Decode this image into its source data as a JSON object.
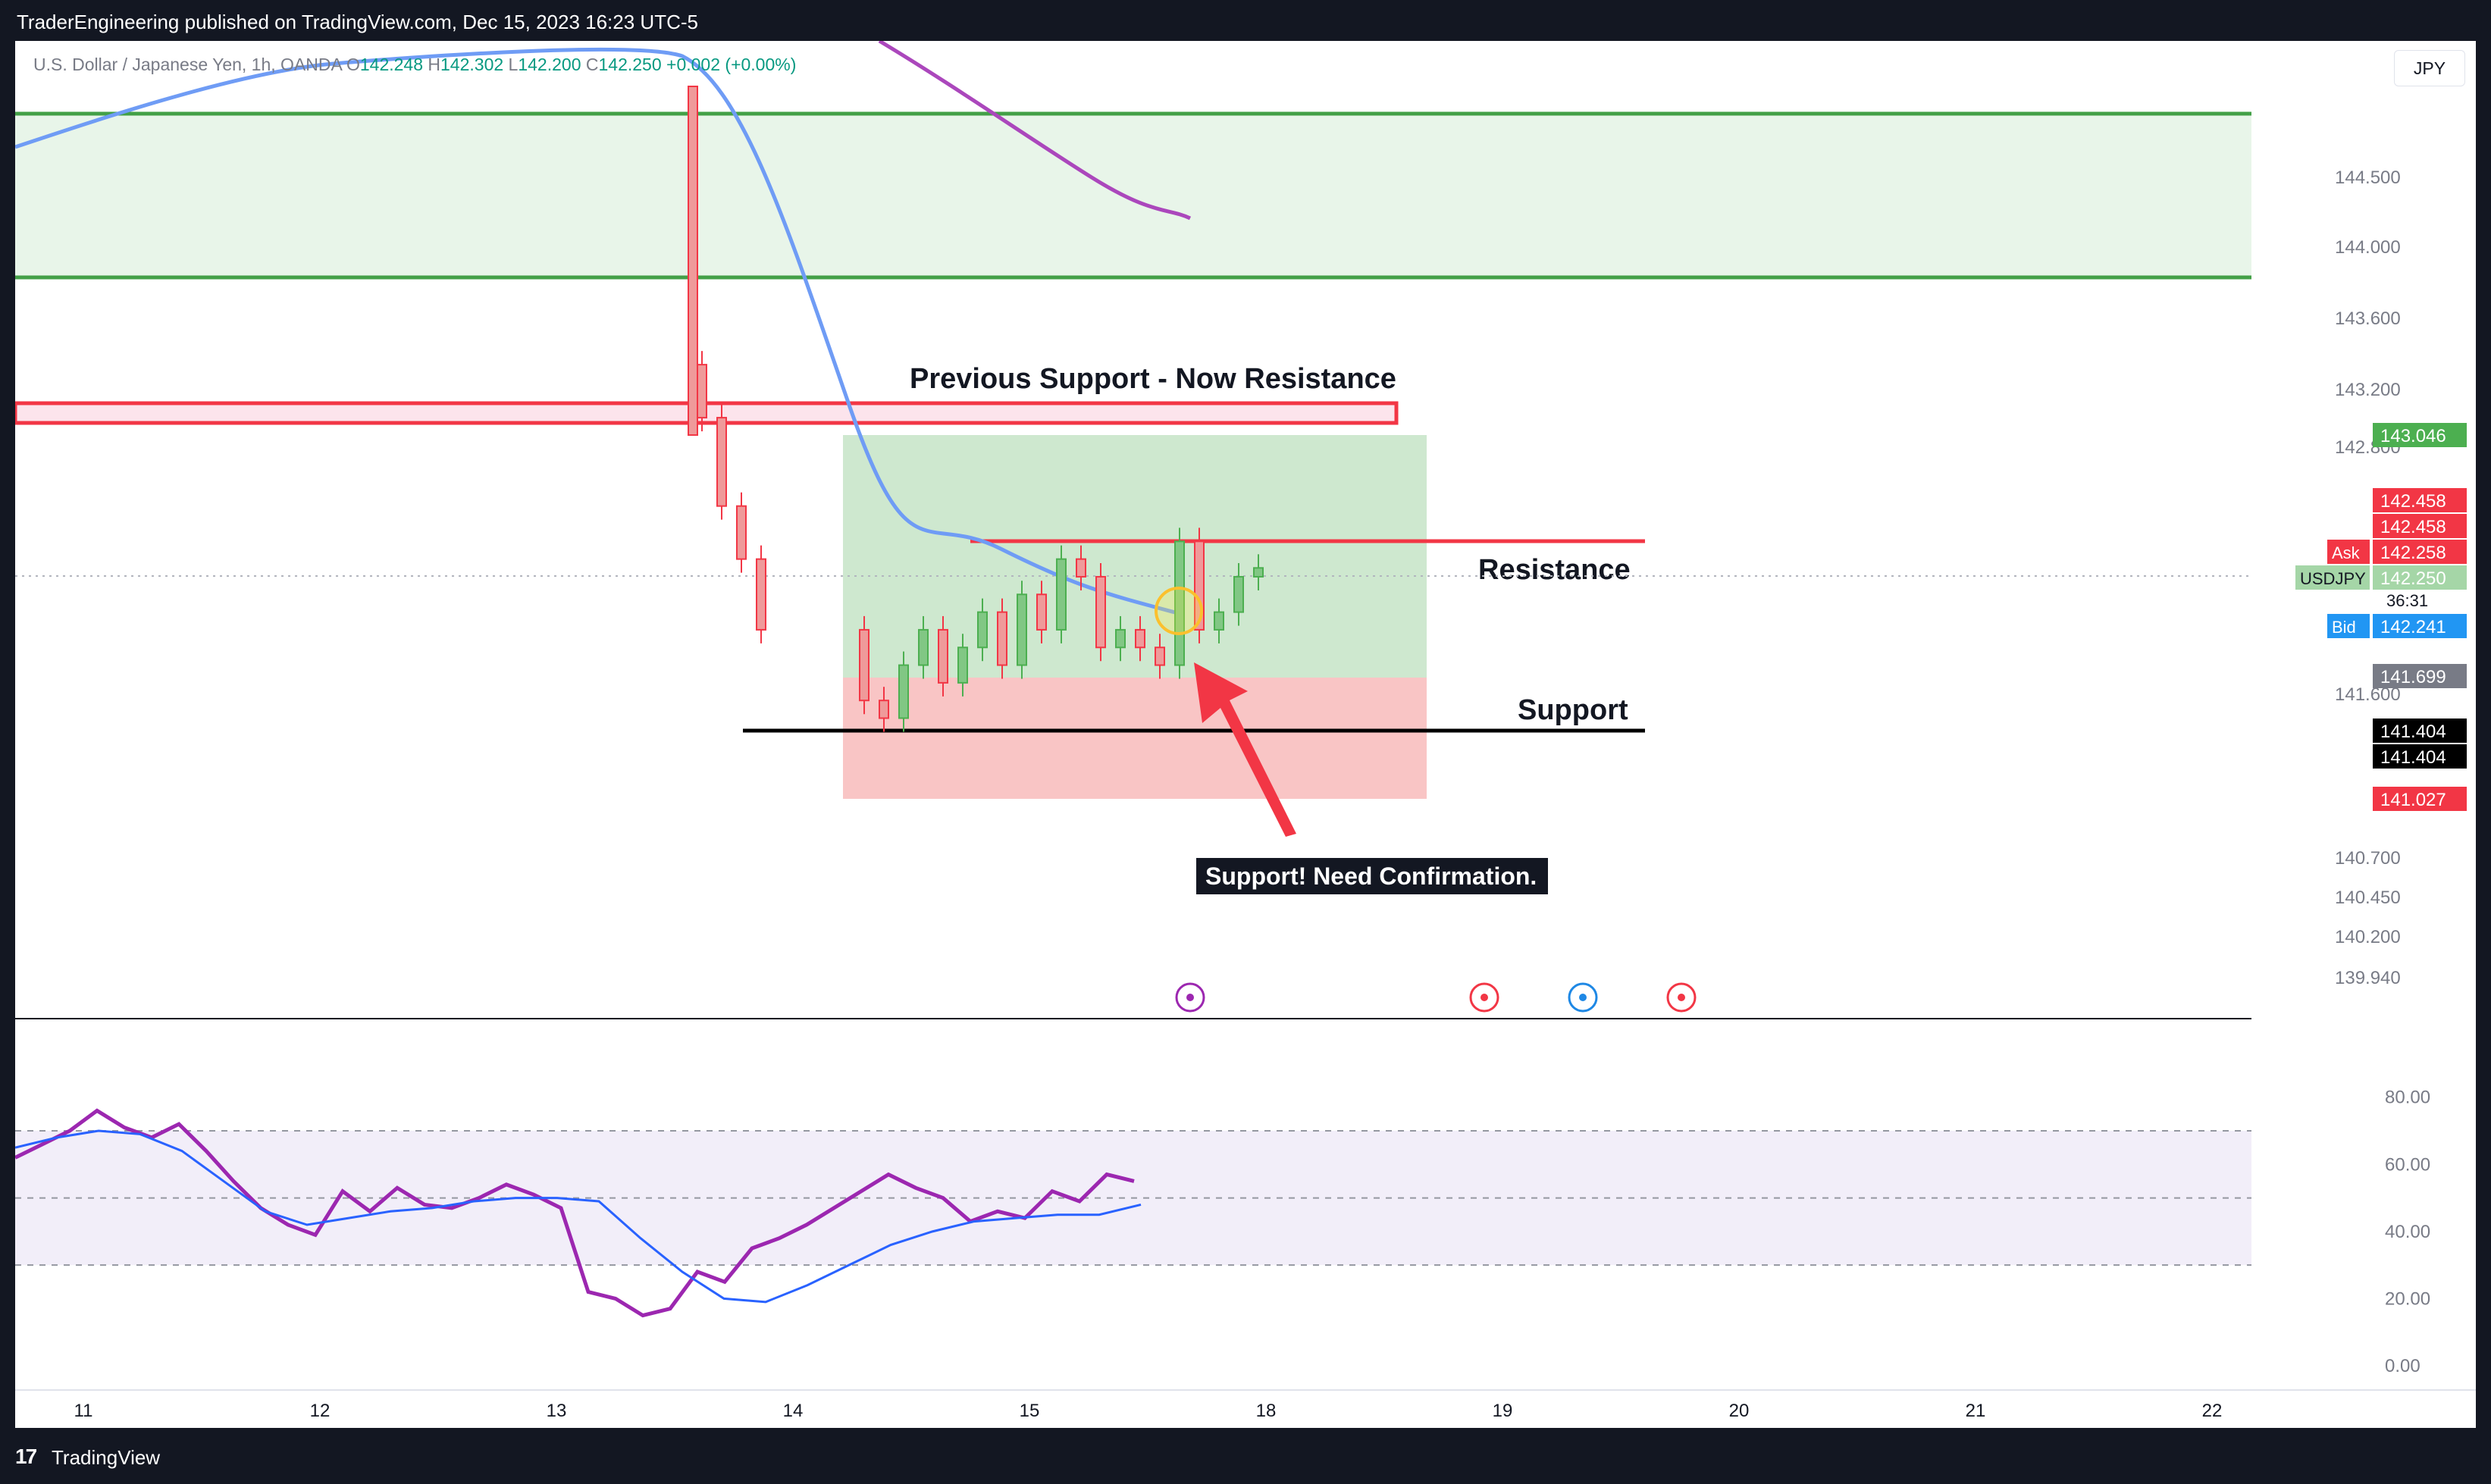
{
  "header": {
    "publisher_line": "TraderEngineering published on TradingView.com, Dec 15, 2023 16:23 UTC-5"
  },
  "legend": {
    "symbol_desc": "U.S. Dollar / Japanese Yen, 1h, OANDA",
    "open_label": "O",
    "open": "142.248",
    "high_label": "H",
    "high": "142.302",
    "low_label": "L",
    "low": "142.200",
    "close_label": "C",
    "close": "142.250",
    "change": "+0.002 (+0.00%)"
  },
  "currency_button": "JPY",
  "footer": {
    "brand": "TradingView",
    "logo_glyph": "17"
  },
  "colors": {
    "up": "#4caf50",
    "down": "#f23645",
    "ema_fast": "#6f9cf5",
    "ema_slow": "#ab47bc",
    "rsi": "#9c27b0",
    "rsi_ma": "#2962ff",
    "zone_green": "#e8f5e9",
    "zone_line": "#43a047"
  },
  "annotations": {
    "prev_support": "Previous Support - Now Resistance",
    "resistance": "Resistance",
    "support": "Support",
    "callout": "Support! Need Confirmation."
  },
  "price_axis": {
    "ticks": [
      "144.500",
      "144.000",
      "143.600",
      "143.200",
      "142.800",
      "141.600",
      "140.700",
      "140.450",
      "140.200",
      "139.940"
    ],
    "badges": [
      {
        "text": "143.046",
        "color": "#4caf50"
      },
      {
        "text": "142.458",
        "color": "#f23645"
      },
      {
        "text": "142.458",
        "color": "#f23645"
      },
      {
        "text": "142.258",
        "color": "#f23645",
        "tag": "Ask"
      },
      {
        "text": "142.250",
        "color": "#a5d6a7",
        "tag": "USDJPY",
        "sub": "36:31"
      },
      {
        "text": "142.241",
        "color": "#2196f3",
        "tag": "Bid"
      },
      {
        "text": "141.699",
        "color": "#787b86"
      },
      {
        "text": "141.404",
        "color": "#000000"
      },
      {
        "text": "141.404",
        "color": "#000000"
      },
      {
        "text": "141.027",
        "color": "#f23645"
      }
    ]
  },
  "rsi_axis": {
    "ticks": [
      "80.00",
      "60.00",
      "40.00",
      "20.00",
      "0.00"
    ]
  },
  "time_axis": {
    "ticks": [
      "11",
      "12",
      "13",
      "14",
      "15",
      "18",
      "19",
      "20",
      "21",
      "22"
    ]
  },
  "chart_data": [
    {
      "type": "line",
      "title": "",
      "xlabel": "",
      "ylabel": "",
      "ylim": [
        139.94,
        145.0
      ],
      "series": [
        {
          "values": [
            144.2,
            144.05,
            143.8,
            143.4,
            143.0,
            142.75,
            142.55,
            142.4,
            142.3,
            142.25
          ]
        },
        {
          "values": [
            145.0,
            144.8,
            144.6,
            144.45
          ]
        }
      ],
      "candles_close": [
        143.1,
        142.6,
        142.3,
        141.9,
        141.5,
        141.4,
        141.7,
        141.9,
        141.6,
        141.8,
        142.0,
        141.7,
        142.1,
        141.9,
        142.3,
        142.2,
        141.8,
        141.9,
        141.8,
        141.7,
        142.4,
        141.9,
        142.0,
        142.2,
        142.25
      ],
      "annotations": [
        "Previous Support - Now Resistance",
        "Resistance",
        "Support",
        "Support! Need Confirmation."
      ]
    },
    {
      "type": "line",
      "title": "",
      "ylim": [
        0,
        100
      ],
      "series": [
        {
          "values": [
            62,
            66,
            70,
            76,
            71,
            68,
            72,
            64,
            55,
            47,
            42,
            39,
            52,
            46,
            53,
            48,
            47,
            50,
            54,
            51,
            47,
            22,
            20,
            15,
            17,
            28,
            25,
            35,
            38,
            42,
            47,
            52,
            57,
            53,
            50,
            43,
            46,
            44,
            52,
            49,
            57,
            55
          ]
        },
        {
          "values": [
            65,
            68,
            70,
            69,
            64,
            55,
            46,
            42,
            44,
            46,
            47,
            49,
            50,
            50,
            49,
            38,
            28,
            20,
            19,
            24,
            30,
            36,
            40,
            43,
            44,
            45,
            45,
            48
          ]
        }
      ]
    }
  ]
}
